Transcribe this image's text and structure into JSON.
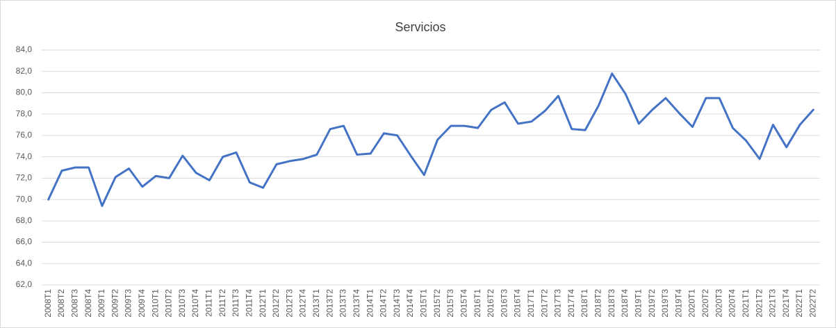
{
  "chart_data": {
    "type": "line",
    "title": "Servicios",
    "categories": [
      "2008T1",
      "2008T2",
      "2008T3",
      "2008T4",
      "2009T1",
      "2009T2",
      "2009T3",
      "2009T4",
      "2010T1",
      "2010T2",
      "2010T3",
      "2010T4",
      "2011T1",
      "2011T2",
      "2011T3",
      "2011T4",
      "2012T1",
      "2012T2",
      "2012T3",
      "2012T4",
      "2013T1",
      "2013T2",
      "2013T3",
      "2013T4",
      "2014T1",
      "2014T2",
      "2014T3",
      "2014T4",
      "2015T1",
      "2015T2",
      "2015T3",
      "2015T4",
      "2016T1",
      "2016T2",
      "2016T3",
      "2016T4",
      "2017T1",
      "2017T2",
      "2017T3",
      "2017T4",
      "2018T1",
      "2018T2",
      "2018T3",
      "2018T4",
      "2019T1",
      "2019T2",
      "2019T3",
      "2019T4",
      "2020T1",
      "2020T2",
      "2020T3",
      "2020T4",
      "2021T1",
      "2021T2",
      "2021T3",
      "2021T4",
      "2022T1",
      "2022T2"
    ],
    "values": [
      70.0,
      72.7,
      73.0,
      73.0,
      69.4,
      72.1,
      72.9,
      71.2,
      72.2,
      72.0,
      74.1,
      72.5,
      71.8,
      74.0,
      74.4,
      71.6,
      71.1,
      73.3,
      73.6,
      73.8,
      74.2,
      76.6,
      76.9,
      74.2,
      74.3,
      76.2,
      76.0,
      74.1,
      72.3,
      75.6,
      76.9,
      76.9,
      76.7,
      78.4,
      79.1,
      77.1,
      77.3,
      78.3,
      79.7,
      76.6,
      76.5,
      78.8,
      81.8,
      79.9,
      77.1,
      78.4,
      79.5,
      78.1,
      76.8,
      79.5,
      79.5,
      76.7,
      75.5,
      73.8,
      77.0,
      74.9,
      77.0,
      78.4
    ],
    "color": "#4472c4",
    "ylim": [
      62,
      84
    ],
    "yticks": [
      {
        "value": 62,
        "label": "62,0"
      },
      {
        "value": 64,
        "label": "64,0"
      },
      {
        "value": 66,
        "label": "66,0"
      },
      {
        "value": 68,
        "label": "68,0"
      },
      {
        "value": 70,
        "label": "70,0"
      },
      {
        "value": 72,
        "label": "72,0"
      },
      {
        "value": 74,
        "label": "74,0"
      },
      {
        "value": 76,
        "label": "76,0"
      },
      {
        "value": 78,
        "label": "78,0"
      },
      {
        "value": 80,
        "label": "80,0"
      },
      {
        "value": 82,
        "label": "82,0"
      },
      {
        "value": 84,
        "label": "84,0"
      }
    ],
    "grid": true
  }
}
